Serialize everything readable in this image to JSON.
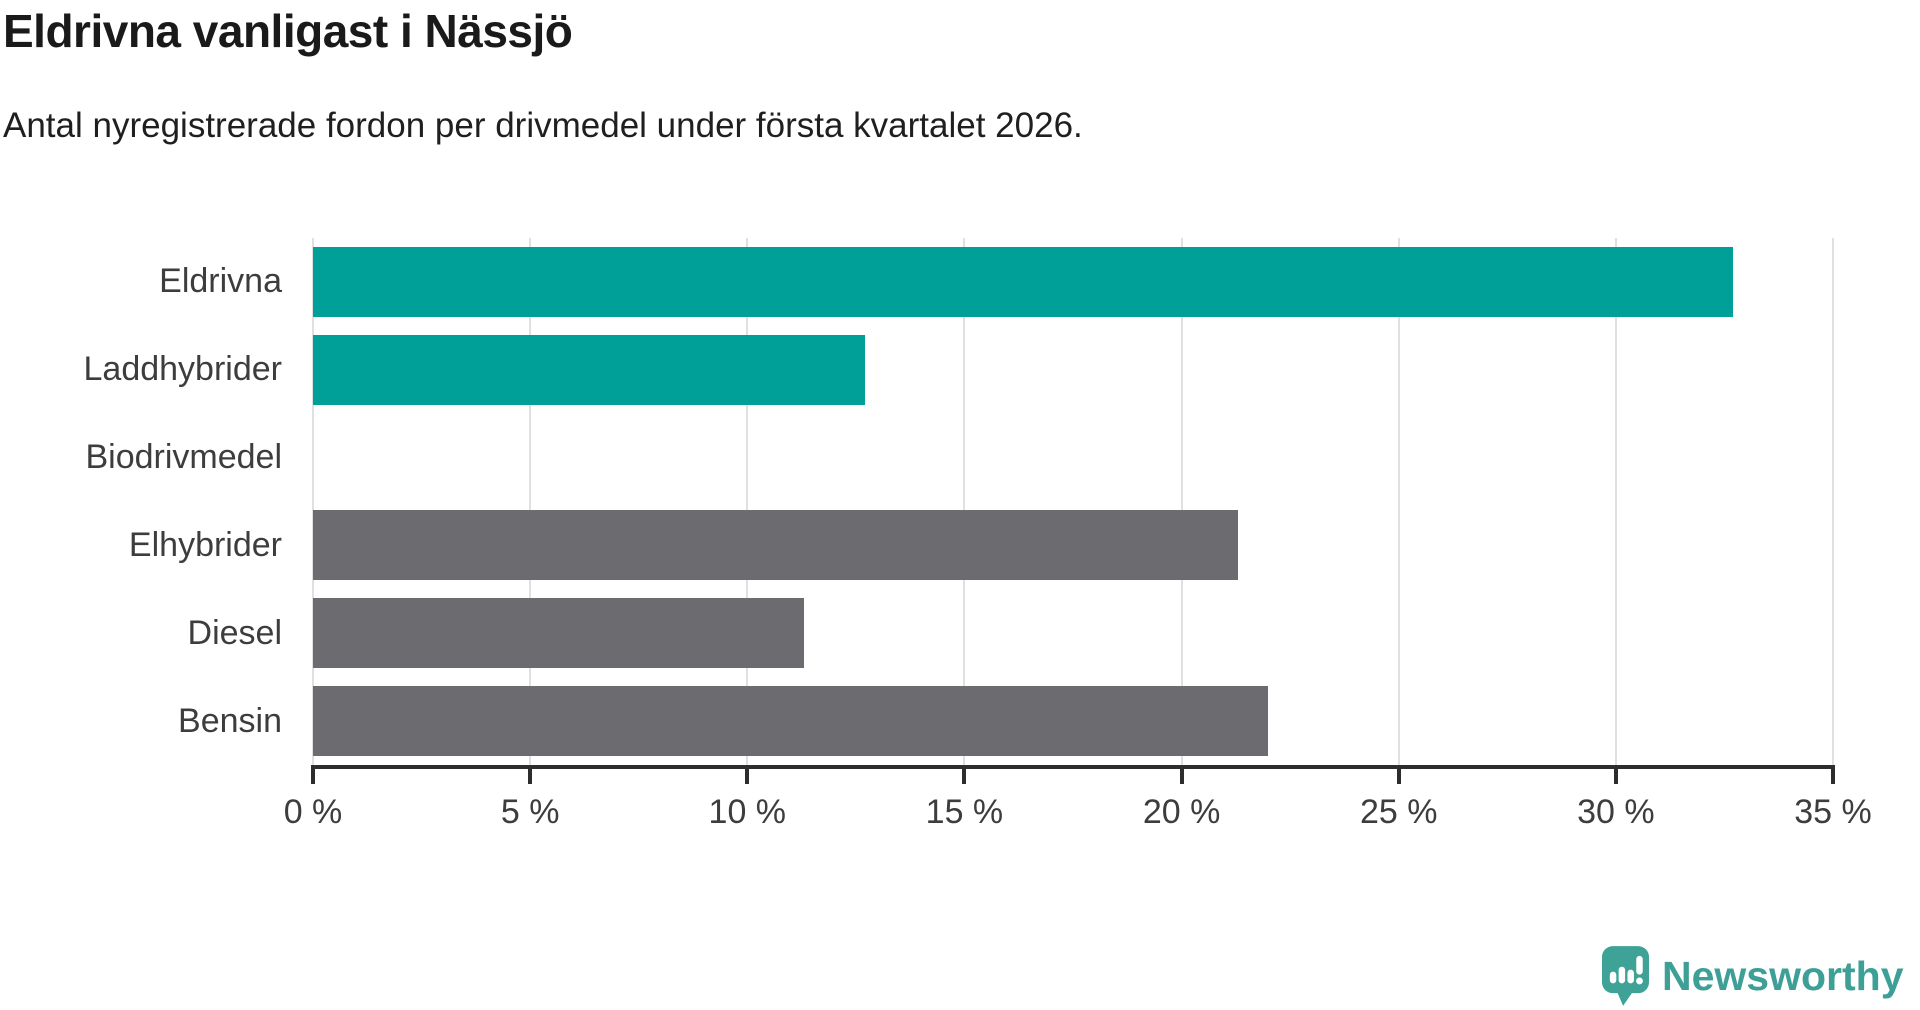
{
  "header": {
    "title": "Eldrivna vanligast i Nässjö",
    "subtitle": "Antal nyregistrerade fordon per drivmedel under första kvartalet 2026."
  },
  "chart_data": {
    "type": "bar",
    "orientation": "horizontal",
    "title": "Eldrivna vanligast i Nässjö",
    "subtitle": "Antal nyregistrerade fordon per drivmedel under första kvartalet 2026.",
    "categories": [
      "Eldrivna",
      "Laddhybrider",
      "Biodrivmedel",
      "Elhybrider",
      "Diesel",
      "Bensin"
    ],
    "values": [
      32.7,
      12.7,
      0,
      21.3,
      11.3,
      22.0
    ],
    "unit": "%",
    "bar_colors": [
      "#00a099",
      "#00a099",
      "#00a099",
      "#6b6b70",
      "#6b6b70",
      "#6b6b70"
    ],
    "xlim": [
      0,
      35
    ],
    "x_ticks": [
      0,
      5,
      10,
      15,
      20,
      25,
      30,
      35
    ],
    "x_tick_labels": [
      "0 %",
      "5 %",
      "10 %",
      "15 %",
      "20 %",
      "25 %",
      "30 %",
      "35 %"
    ],
    "grid": "vertical-only",
    "legend": "none",
    "highlight_color": "#00a099",
    "muted_color": "#6b6b70"
  },
  "footer": {
    "brand": "Newsworthy",
    "logo_icon": "newsworthy-speech-bubble-chart-icon",
    "brand_color": "#3e9f97",
    "logo_fill": "#3ea296"
  },
  "colors": {
    "grid": "#e0e0e0",
    "axis": "#2d2d2d",
    "tick_text": "#3d3d3d",
    "title_text": "#1a1a1a"
  }
}
